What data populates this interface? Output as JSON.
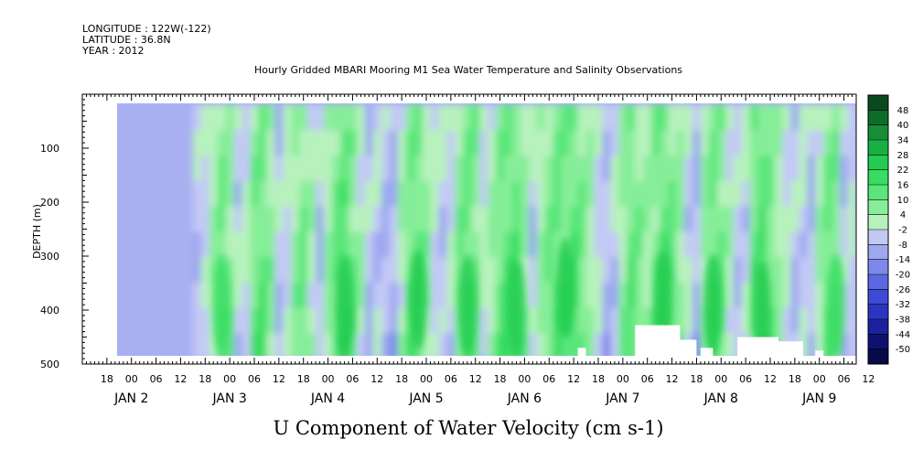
{
  "header": {
    "longitude": "LONGITUDE : 122W(-122)",
    "latitude": "LATITUDE : 36.8N",
    "year": "YEAR : 2012"
  },
  "chart_data": {
    "type": "heatmap",
    "title": "Hourly Gridded MBARI Mooring M1 Sea Water Temperature and Salinity Observations",
    "xlabel": "",
    "ylabel": "DEPTH (m)",
    "variable_title": "U Component of Water Velocity (cm s-1)",
    "xlim_hours": [
      0,
      189
    ],
    "ylim": [
      0,
      500
    ],
    "data_depth_range": [
      20,
      490
    ],
    "y_axis_reversed": true,
    "y_ticks": [
      100,
      200,
      300,
      400,
      500
    ],
    "hour_tick_labels": [
      "18",
      "00",
      "06",
      "12",
      "18",
      "00",
      "06",
      "12",
      "18",
      "00",
      "06",
      "12",
      "18",
      "00",
      "06",
      "12",
      "18",
      "00",
      "06",
      "12",
      "18",
      "00",
      "06",
      "12",
      "18",
      "00",
      "06",
      "12",
      "18",
      "00",
      "06",
      "12"
    ],
    "day_labels": [
      "JAN 2",
      "JAN 3",
      "JAN 4",
      "JAN 5",
      "JAN 6",
      "JAN 7",
      "JAN 8",
      "JAN 9"
    ],
    "colorbar_levels": [
      "48",
      "40",
      "34",
      "28",
      "22",
      "16",
      "10",
      "4",
      "-2",
      "-8",
      "-14",
      "-20",
      "-26",
      "-32",
      "-38",
      "-44",
      "-50"
    ],
    "colorbar_colors": [
      "#0a4a1e",
      "#0f6b2a",
      "#148e37",
      "#19b043",
      "#22cc4f",
      "#37dd62",
      "#5ae67a",
      "#86ee98",
      "#b7f2bd",
      "#c3c9f5",
      "#9ea8f0",
      "#7d89ea",
      "#5b68e2",
      "#3d4ad8",
      "#2a35c2",
      "#1a229e",
      "#0d1270",
      "#070948"
    ],
    "column_hours": [
      28,
      30,
      32,
      34,
      36,
      38,
      40,
      42,
      44,
      46,
      48,
      50,
      52,
      54,
      56,
      58,
      60,
      62,
      64,
      66,
      68,
      70,
      72,
      74,
      76,
      78,
      80,
      82,
      84,
      86,
      88,
      90,
      92,
      94,
      96,
      98,
      100,
      102,
      104,
      106,
      108,
      110,
      112,
      114,
      116,
      118,
      120,
      122,
      124,
      126,
      128,
      130,
      132,
      134,
      136,
      138,
      140,
      142,
      144,
      146,
      148,
      150,
      152,
      154,
      156,
      158,
      160,
      162,
      164,
      166,
      168,
      170,
      172,
      174,
      176,
      178,
      180,
      182,
      184,
      186,
      188
    ],
    "column_u_mean": [
      -6,
      -4,
      4,
      10,
      6,
      -4,
      -2,
      10,
      14,
      6,
      -6,
      -2,
      6,
      10,
      2,
      -8,
      4,
      12,
      16,
      10,
      2,
      -6,
      -4,
      -10,
      -8,
      2,
      10,
      14,
      6,
      -2,
      -6,
      -4,
      8,
      12,
      10,
      -2,
      4,
      10,
      16,
      14,
      6,
      -6,
      4,
      10,
      14,
      12,
      16,
      10,
      4,
      -2,
      -8,
      -4,
      6,
      12,
      8,
      4,
      10,
      16,
      12,
      6,
      -4,
      -8,
      6,
      14,
      10,
      2,
      -6,
      -4,
      12,
      16,
      10,
      4,
      -2,
      -6,
      -4,
      -8,
      4,
      12,
      10,
      -6,
      -2
    ]
  },
  "colors": {
    "positive": "#22cc4f",
    "negative": "#7d89ea",
    "missing": "#ffffff"
  }
}
